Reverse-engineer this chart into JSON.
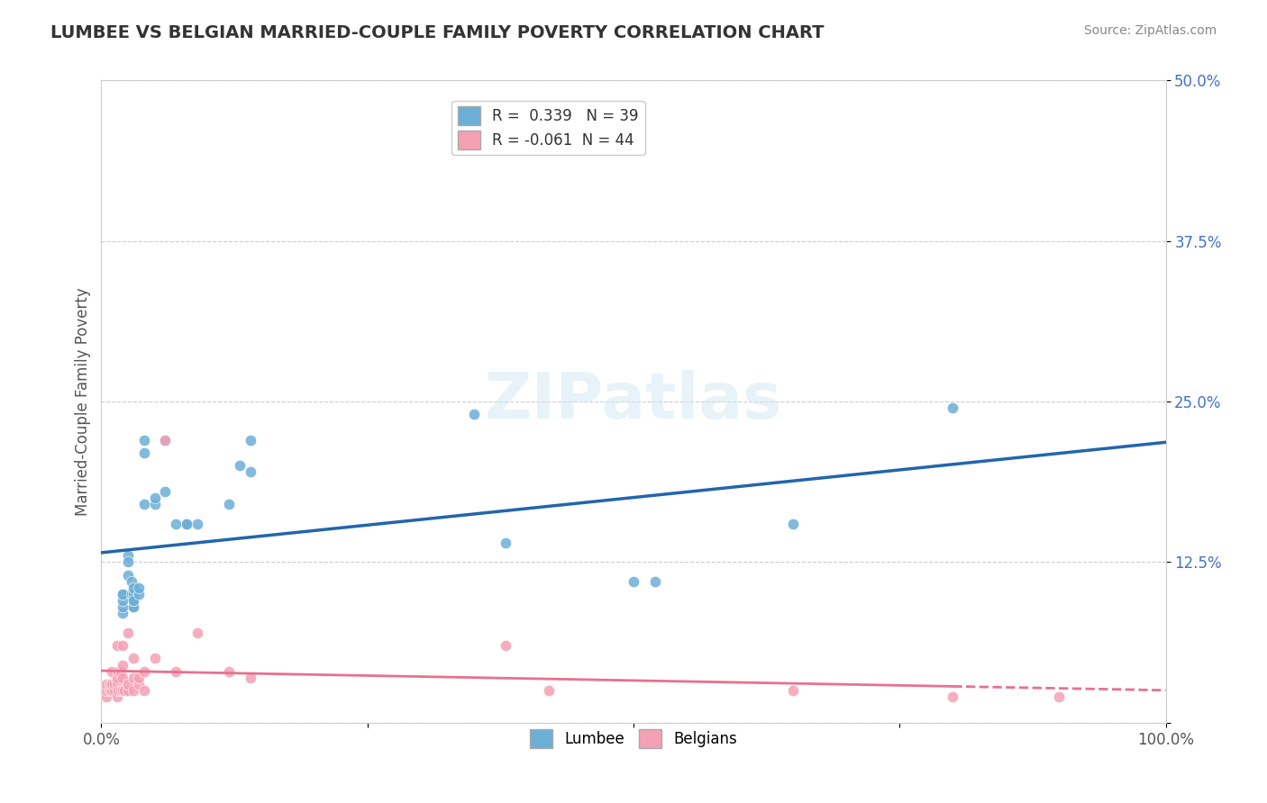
{
  "title": "LUMBEE VS BELGIAN MARRIED-COUPLE FAMILY POVERTY CORRELATION CHART",
  "source": "Source: ZipAtlas.com",
  "xlabel": "",
  "ylabel": "Married-Couple Family Poverty",
  "xlim": [
    0,
    1.0
  ],
  "ylim": [
    0,
    0.5
  ],
  "xticks": [
    0.0,
    0.25,
    0.5,
    0.75,
    1.0
  ],
  "xtick_labels": [
    "0.0%",
    "",
    "",
    "",
    "100.0%"
  ],
  "yticks": [
    0.0,
    0.125,
    0.25,
    0.375,
    0.5
  ],
  "ytick_labels": [
    "",
    "12.5%",
    "25.0%",
    "37.5%",
    "50.0%"
  ],
  "lumbee_R": 0.339,
  "lumbee_N": 39,
  "belgian_R": -0.061,
  "belgian_N": 44,
  "lumbee_color": "#6baed6",
  "belgian_color": "#f4a0b5",
  "lumbee_line_color": "#2166ac",
  "belgian_line_color": "#e87090",
  "background_color": "#ffffff",
  "grid_color": "#cccccc",
  "watermark": "ZIPatlas",
  "lumbee_x": [
    0.02,
    0.02,
    0.02,
    0.02,
    0.02,
    0.025,
    0.025,
    0.025,
    0.028,
    0.028,
    0.03,
    0.03,
    0.03,
    0.03,
    0.03,
    0.03,
    0.035,
    0.035,
    0.04,
    0.04,
    0.04,
    0.05,
    0.05,
    0.06,
    0.06,
    0.07,
    0.08,
    0.08,
    0.09,
    0.12,
    0.13,
    0.14,
    0.14,
    0.35,
    0.38,
    0.5,
    0.52,
    0.65,
    0.8
  ],
  "lumbee_y": [
    0.1,
    0.085,
    0.09,
    0.095,
    0.1,
    0.13,
    0.125,
    0.115,
    0.1,
    0.11,
    0.09,
    0.09,
    0.095,
    0.1,
    0.105,
    0.095,
    0.1,
    0.105,
    0.17,
    0.21,
    0.22,
    0.17,
    0.175,
    0.18,
    0.22,
    0.155,
    0.155,
    0.155,
    0.155,
    0.17,
    0.2,
    0.195,
    0.22,
    0.24,
    0.14,
    0.11,
    0.11,
    0.155,
    0.245
  ],
  "belgian_x": [
    0.005,
    0.005,
    0.005,
    0.008,
    0.008,
    0.01,
    0.01,
    0.01,
    0.012,
    0.012,
    0.015,
    0.015,
    0.015,
    0.015,
    0.016,
    0.016,
    0.018,
    0.018,
    0.02,
    0.02,
    0.02,
    0.02,
    0.022,
    0.025,
    0.025,
    0.025,
    0.03,
    0.03,
    0.03,
    0.035,
    0.035,
    0.04,
    0.04,
    0.05,
    0.06,
    0.07,
    0.09,
    0.12,
    0.14,
    0.38,
    0.42,
    0.65,
    0.8,
    0.9
  ],
  "belgian_y": [
    0.02,
    0.025,
    0.03,
    0.025,
    0.03,
    0.025,
    0.03,
    0.04,
    0.025,
    0.03,
    0.02,
    0.03,
    0.035,
    0.06,
    0.025,
    0.04,
    0.025,
    0.04,
    0.025,
    0.035,
    0.045,
    0.06,
    0.025,
    0.025,
    0.03,
    0.07,
    0.025,
    0.035,
    0.05,
    0.03,
    0.035,
    0.025,
    0.04,
    0.05,
    0.22,
    0.04,
    0.07,
    0.04,
    0.035,
    0.06,
    0.025,
    0.025,
    0.02,
    0.02
  ]
}
